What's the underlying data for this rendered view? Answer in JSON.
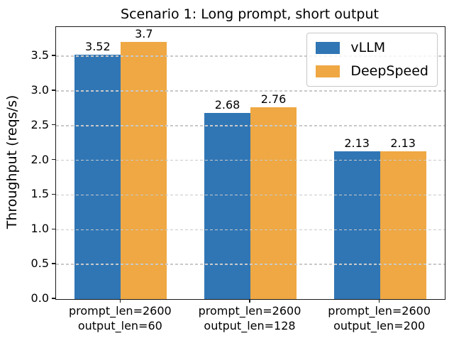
{
  "chart_data": {
    "type": "bar",
    "title": "Scenario 1: Long prompt, short output",
    "ylabel": "Throughput (reqs/s)",
    "xlabel": "",
    "categories": [
      "prompt_len=2600\noutput_len=60",
      "prompt_len=2600\noutput_len=128",
      "prompt_len=2600\noutput_len=200"
    ],
    "series": [
      {
        "name": "vLLM",
        "color": "#3076b5",
        "values": [
          3.52,
          2.68,
          2.13
        ],
        "labels": [
          "3.52",
          "2.68",
          "2.13"
        ]
      },
      {
        "name": "DeepSpeed",
        "color": "#efa843",
        "values": [
          3.7,
          2.76,
          2.13
        ],
        "labels": [
          "3.7",
          "2.76",
          "2.13"
        ]
      }
    ],
    "yticks": [
      0,
      0.5,
      1,
      1.5,
      2,
      2.5,
      3,
      3.5
    ],
    "ytick_labels": [
      "0.0",
      "0.5",
      "1.0",
      "1.5",
      "2.0",
      "2.5",
      "3.0",
      "3.5"
    ],
    "ylim": [
      0,
      3.92
    ],
    "grid": "horizontal-dashed",
    "grid_above_bars": true,
    "legend_position": "upper-right"
  }
}
